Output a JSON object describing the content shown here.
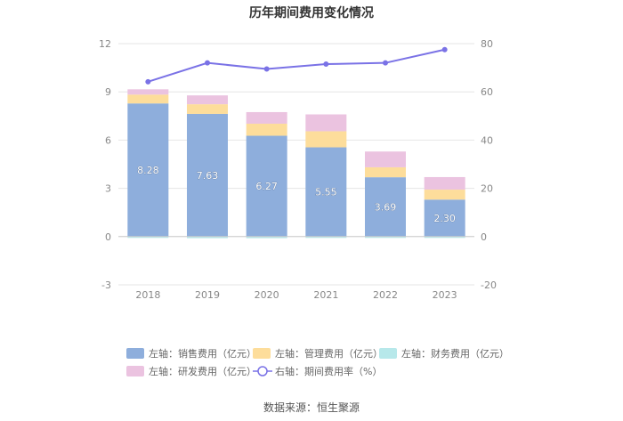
{
  "title": "历年期间费用变化情况",
  "source": "数据来源：恒生聚源",
  "chart_data": {
    "type": "bar",
    "stacked": true,
    "categories": [
      "2018",
      "2019",
      "2020",
      "2021",
      "2022",
      "2023"
    ],
    "left_axis": {
      "ylim": [
        -3,
        12
      ],
      "ticks": [
        "-3",
        "0",
        "3",
        "6",
        "9",
        "12"
      ]
    },
    "right_axis": {
      "ylim": [
        -20,
        80
      ],
      "ticks": [
        "-20",
        "0",
        "20",
        "40",
        "60",
        "80"
      ]
    },
    "series": [
      {
        "name": "左轴：销售费用（亿元）",
        "axis": "left",
        "color": "#8eaedc",
        "values": [
          8.28,
          7.63,
          6.27,
          5.55,
          3.69,
          2.3
        ],
        "labels": [
          "8.28",
          "7.63",
          "6.27",
          "5.55",
          "3.69",
          "2.30"
        ]
      },
      {
        "name": "左轴：管理费用（亿元）",
        "axis": "left",
        "color": "#fddd9b",
        "values": [
          0.55,
          0.6,
          0.75,
          1.0,
          0.62,
          0.62
        ]
      },
      {
        "name": "左轴：财务费用（亿元）",
        "axis": "left",
        "color": "#b7e8ea",
        "values": [
          -0.02,
          -0.1,
          -0.1,
          -0.08,
          -0.02,
          -0.03
        ]
      },
      {
        "name": "左轴：研发费用（亿元）",
        "axis": "left",
        "color": "#ebc3e0",
        "values": [
          0.33,
          0.55,
          0.72,
          1.05,
          0.98,
          0.78
        ]
      },
      {
        "name": "右轴：期间费用率（%）",
        "axis": "right",
        "type": "line",
        "color": "#7a72e6",
        "values": [
          64.2,
          72.0,
          69.5,
          71.5,
          72.0,
          77.5
        ]
      }
    ],
    "grid": true,
    "legend_position": "bottom"
  }
}
